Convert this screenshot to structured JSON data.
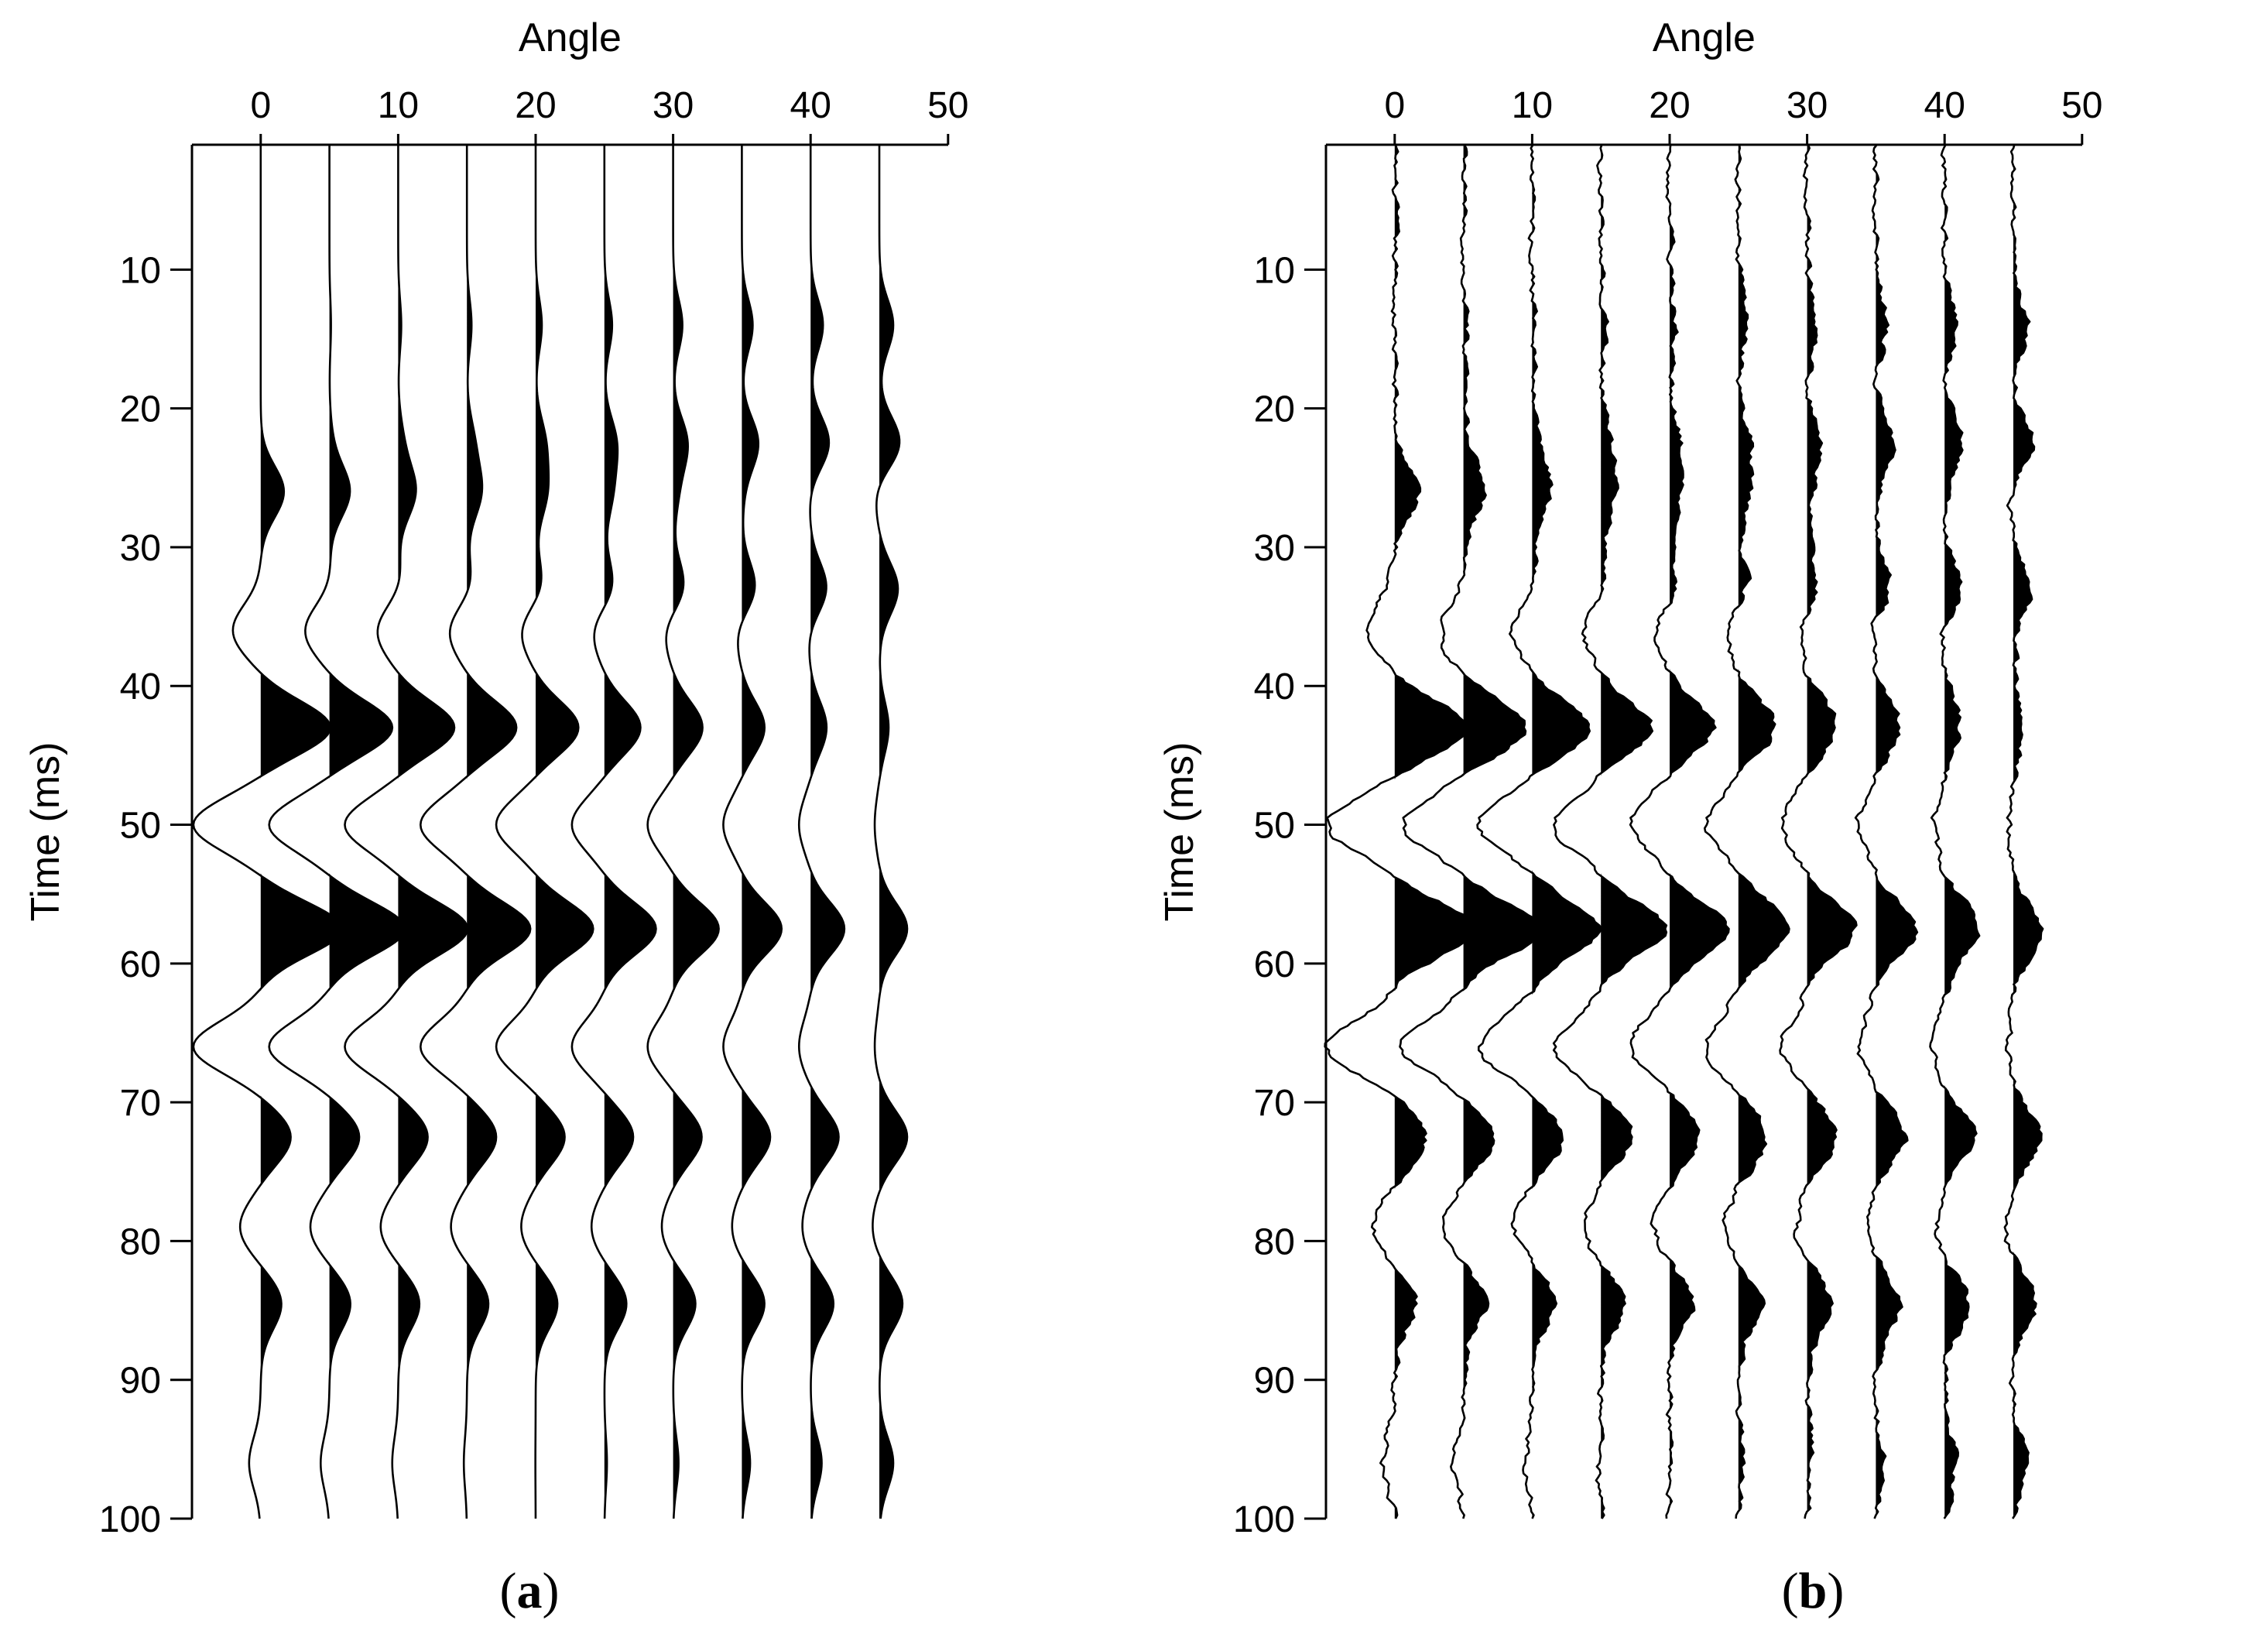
{
  "panels": [
    {
      "id": "a",
      "caption": {
        "open": "(",
        "letter": "a",
        "close": ")"
      }
    },
    {
      "id": "b",
      "caption": {
        "open": "(",
        "letter": "b",
        "close": ")"
      }
    }
  ],
  "chart_data": [
    {
      "type": "seismic-wiggle",
      "xlabel": "Angle",
      "ylabel": "Time (ms)",
      "xticks": [
        "0",
        "10",
        "20",
        "30",
        "40",
        "50"
      ],
      "yticks": [
        "10",
        "20",
        "30",
        "40",
        "50",
        "60",
        "70",
        "80",
        "90",
        "100"
      ],
      "xlim": [
        -5,
        50
      ],
      "ylim": [
        1,
        100
      ],
      "x_axis_position": "top",
      "trace_angles": [
        0,
        5,
        10,
        15,
        20,
        25,
        30,
        35,
        40,
        45
      ],
      "fill": "positive lobes filled black",
      "noise": false,
      "events": [
        {
          "time": 14,
          "amplitude_at_0": 0.0,
          "amplitude_at_45": 0.6
        },
        {
          "time": 22.5,
          "amplitude_at_0": 0.0,
          "amplitude_at_45": 0.9
        },
        {
          "time": 26,
          "amplitude_at_0": 1.0,
          "amplitude_at_45": -0.2
        },
        {
          "time": 33,
          "amplitude_at_0": 0.0,
          "amplitude_at_45": 0.8
        },
        {
          "time": 36,
          "amplitude_at_0": -1.2,
          "amplitude_at_45": 0.0
        },
        {
          "time": 43,
          "amplitude_at_0": 3.0,
          "amplitude_at_45": 0.4
        },
        {
          "time": 50,
          "amplitude_at_0": -2.9,
          "amplitude_at_45": -0.2
        },
        {
          "time": 57.5,
          "amplitude_at_0": 3.5,
          "amplitude_at_45": 1.2
        },
        {
          "time": 66,
          "amplitude_at_0": -2.9,
          "amplitude_at_45": -0.2
        },
        {
          "time": 72.5,
          "amplitude_at_0": 1.3,
          "amplitude_at_45": 1.2
        },
        {
          "time": 79,
          "amplitude_at_0": -0.9,
          "amplitude_at_45": -0.3
        },
        {
          "time": 84.5,
          "amplitude_at_0": 0.9,
          "amplitude_at_45": 1.0
        },
        {
          "time": 96,
          "amplitude_at_0": -0.5,
          "amplitude_at_45": 0.6
        }
      ]
    },
    {
      "type": "seismic-wiggle",
      "xlabel": "Angle",
      "ylabel": "Time (ms)",
      "xticks": [
        "0",
        "10",
        "20",
        "30",
        "40",
        "50"
      ],
      "yticks": [
        "10",
        "20",
        "30",
        "40",
        "50",
        "60",
        "70",
        "80",
        "90",
        "100"
      ],
      "xlim": [
        -5,
        50
      ],
      "ylim": [
        1,
        100
      ],
      "x_axis_position": "top",
      "trace_angles": [
        0,
        5,
        10,
        15,
        20,
        25,
        30,
        35,
        40,
        45
      ],
      "fill": "positive lobes filled black",
      "noise": true,
      "events": [
        {
          "time": 14,
          "amplitude_at_0": 0.0,
          "amplitude_at_45": 0.6
        },
        {
          "time": 22.5,
          "amplitude_at_0": 0.0,
          "amplitude_at_45": 0.9
        },
        {
          "time": 26,
          "amplitude_at_0": 1.0,
          "amplitude_at_45": -0.2
        },
        {
          "time": 33,
          "amplitude_at_0": 0.0,
          "amplitude_at_45": 0.8
        },
        {
          "time": 36,
          "amplitude_at_0": -1.2,
          "amplitude_at_45": 0.0
        },
        {
          "time": 43,
          "amplitude_at_0": 3.0,
          "amplitude_at_45": 0.4
        },
        {
          "time": 50,
          "amplitude_at_0": -2.9,
          "amplitude_at_45": -0.2
        },
        {
          "time": 57.5,
          "amplitude_at_0": 3.5,
          "amplitude_at_45": 1.2
        },
        {
          "time": 66,
          "amplitude_at_0": -2.9,
          "amplitude_at_45": -0.2
        },
        {
          "time": 72.5,
          "amplitude_at_0": 1.3,
          "amplitude_at_45": 1.2
        },
        {
          "time": 79,
          "amplitude_at_0": -0.9,
          "amplitude_at_45": -0.3
        },
        {
          "time": 84.5,
          "amplitude_at_0": 0.9,
          "amplitude_at_45": 1.0
        },
        {
          "time": 96,
          "amplitude_at_0": -0.5,
          "amplitude_at_45": 0.6
        }
      ]
    }
  ]
}
